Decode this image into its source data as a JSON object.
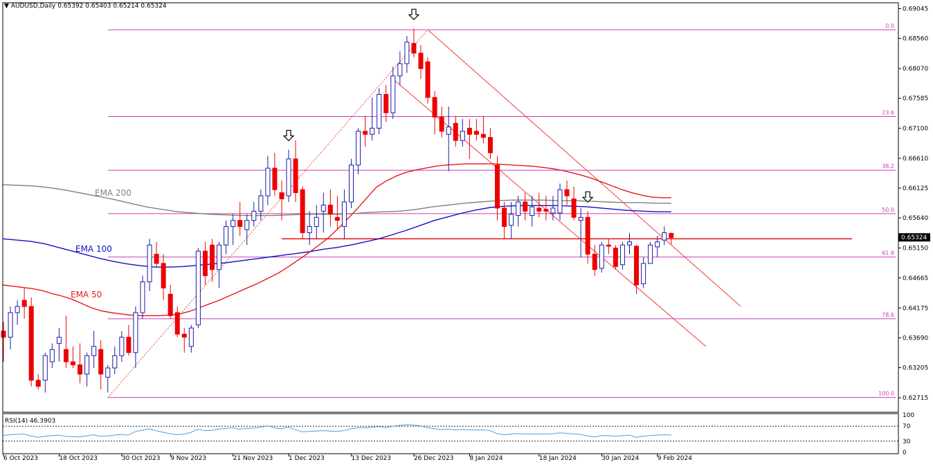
{
  "window": {
    "header_text": "AUDUSD,Daily  0.65392 0.65403 0.65214 0.65324",
    "symbol": "AUDUSD",
    "timeframe": "Daily",
    "ohlc": {
      "open": "0.65392",
      "high": "0.65403",
      "low": "0.65214",
      "close": "0.65324"
    },
    "current_price_label": "0.65324"
  },
  "colors": {
    "bull_body": "#ffffff",
    "bull_outline": "#1a1aa6",
    "bear_body": "#ee0000",
    "ema50": "#e8161b",
    "ema100": "#1010c8",
    "ema200": "#808080",
    "fib": "#c83cb4",
    "support_line": "#e00000",
    "channel": "#f03c3c",
    "rsi": "#4d9de0"
  },
  "chart_data": [
    {
      "type": "candlestick",
      "y_axis": {
        "ticks": [
          "0.69045",
          "0.68560",
          "0.68070",
          "0.67585",
          "0.67100",
          "0.66610",
          "0.66125",
          "0.65640",
          "0.65150",
          "0.64665",
          "0.64175",
          "0.63690",
          "0.63205",
          "0.62715"
        ],
        "range": [
          0.6248,
          0.6914
        ]
      },
      "x_axis": {
        "ticks": [
          "6 Oct 2023",
          "18 Oct 2023",
          "30 Oct 2023",
          "9 Nov 2023",
          "21 Nov 2023",
          "1 Dec 2023",
          "13 Dec 2023",
          "26 Dec 2023",
          "8 Jan 2024",
          "18 Jan 2024",
          "30 Jan 2024",
          "9 Feb 2024"
        ]
      },
      "candles": [
        {
          "o": 0.638,
          "h": 0.6395,
          "l": 0.633,
          "c": 0.637
        },
        {
          "o": 0.637,
          "h": 0.642,
          "l": 0.635,
          "c": 0.641
        },
        {
          "o": 0.641,
          "h": 0.643,
          "l": 0.639,
          "c": 0.642
        },
        {
          "o": 0.643,
          "h": 0.645,
          "l": 0.64,
          "c": 0.642
        },
        {
          "o": 0.642,
          "h": 0.6435,
          "l": 0.629,
          "c": 0.63
        },
        {
          "o": 0.63,
          "h": 0.631,
          "l": 0.6285,
          "c": 0.629
        },
        {
          "o": 0.63,
          "h": 0.6345,
          "l": 0.628,
          "c": 0.634
        },
        {
          "o": 0.633,
          "h": 0.636,
          "l": 0.632,
          "c": 0.635
        },
        {
          "o": 0.636,
          "h": 0.6385,
          "l": 0.633,
          "c": 0.637
        },
        {
          "o": 0.635,
          "h": 0.6405,
          "l": 0.632,
          "c": 0.633
        },
        {
          "o": 0.633,
          "h": 0.6355,
          "l": 0.632,
          "c": 0.6325
        },
        {
          "o": 0.6325,
          "h": 0.636,
          "l": 0.6295,
          "c": 0.631
        },
        {
          "o": 0.631,
          "h": 0.6345,
          "l": 0.629,
          "c": 0.634
        },
        {
          "o": 0.634,
          "h": 0.638,
          "l": 0.632,
          "c": 0.6355
        },
        {
          "o": 0.635,
          "h": 0.6365,
          "l": 0.6285,
          "c": 0.631
        },
        {
          "o": 0.6305,
          "h": 0.6325,
          "l": 0.628,
          "c": 0.632
        },
        {
          "o": 0.632,
          "h": 0.6355,
          "l": 0.631,
          "c": 0.634
        },
        {
          "o": 0.634,
          "h": 0.638,
          "l": 0.633,
          "c": 0.637
        },
        {
          "o": 0.637,
          "h": 0.639,
          "l": 0.634,
          "c": 0.6345
        },
        {
          "o": 0.6345,
          "h": 0.642,
          "l": 0.632,
          "c": 0.641
        },
        {
          "o": 0.641,
          "h": 0.647,
          "l": 0.64,
          "c": 0.646
        },
        {
          "o": 0.646,
          "h": 0.653,
          "l": 0.6445,
          "c": 0.652
        },
        {
          "o": 0.6505,
          "h": 0.6525,
          "l": 0.6485,
          "c": 0.649
        },
        {
          "o": 0.649,
          "h": 0.6505,
          "l": 0.643,
          "c": 0.645
        },
        {
          "o": 0.644,
          "h": 0.6455,
          "l": 0.64,
          "c": 0.6405
        },
        {
          "o": 0.641,
          "h": 0.642,
          "l": 0.637,
          "c": 0.6375
        },
        {
          "o": 0.6375,
          "h": 0.6385,
          "l": 0.6345,
          "c": 0.637
        },
        {
          "o": 0.6355,
          "h": 0.639,
          "l": 0.6345,
          "c": 0.6385
        },
        {
          "o": 0.639,
          "h": 0.6515,
          "l": 0.6385,
          "c": 0.651
        },
        {
          "o": 0.651,
          "h": 0.6525,
          "l": 0.6455,
          "c": 0.647
        },
        {
          "o": 0.652,
          "h": 0.653,
          "l": 0.646,
          "c": 0.648
        },
        {
          "o": 0.648,
          "h": 0.6525,
          "l": 0.645,
          "c": 0.652
        },
        {
          "o": 0.652,
          "h": 0.656,
          "l": 0.6505,
          "c": 0.655
        },
        {
          "o": 0.655,
          "h": 0.657,
          "l": 0.652,
          "c": 0.656
        },
        {
          "o": 0.656,
          "h": 0.659,
          "l": 0.6535,
          "c": 0.655
        },
        {
          "o": 0.6545,
          "h": 0.657,
          "l": 0.652,
          "c": 0.656
        },
        {
          "o": 0.656,
          "h": 0.659,
          "l": 0.655,
          "c": 0.6575
        },
        {
          "o": 0.6575,
          "h": 0.661,
          "l": 0.656,
          "c": 0.66
        },
        {
          "o": 0.66,
          "h": 0.6665,
          "l": 0.6585,
          "c": 0.6645
        },
        {
          "o": 0.6645,
          "h": 0.667,
          "l": 0.66,
          "c": 0.661
        },
        {
          "o": 0.6605,
          "h": 0.6625,
          "l": 0.656,
          "c": 0.6595
        },
        {
          "o": 0.66,
          "h": 0.6675,
          "l": 0.659,
          "c": 0.666
        },
        {
          "o": 0.666,
          "h": 0.669,
          "l": 0.659,
          "c": 0.6605
        },
        {
          "o": 0.661,
          "h": 0.6615,
          "l": 0.653,
          "c": 0.654
        },
        {
          "o": 0.654,
          "h": 0.6575,
          "l": 0.652,
          "c": 0.655
        },
        {
          "o": 0.655,
          "h": 0.6585,
          "l": 0.653,
          "c": 0.6565
        },
        {
          "o": 0.6575,
          "h": 0.6605,
          "l": 0.654,
          "c": 0.6585
        },
        {
          "o": 0.6585,
          "h": 0.661,
          "l": 0.655,
          "c": 0.657
        },
        {
          "o": 0.6565,
          "h": 0.66,
          "l": 0.6545,
          "c": 0.656
        },
        {
          "o": 0.655,
          "h": 0.661,
          "l": 0.653,
          "c": 0.659
        },
        {
          "o": 0.659,
          "h": 0.666,
          "l": 0.658,
          "c": 0.665
        },
        {
          "o": 0.665,
          "h": 0.671,
          "l": 0.6635,
          "c": 0.6705
        },
        {
          "o": 0.6705,
          "h": 0.673,
          "l": 0.668,
          "c": 0.67
        },
        {
          "o": 0.67,
          "h": 0.676,
          "l": 0.669,
          "c": 0.671
        },
        {
          "o": 0.671,
          "h": 0.6775,
          "l": 0.67,
          "c": 0.6765
        },
        {
          "o": 0.6765,
          "h": 0.678,
          "l": 0.672,
          "c": 0.6735
        },
        {
          "o": 0.6735,
          "h": 0.681,
          "l": 0.6725,
          "c": 0.6795
        },
        {
          "o": 0.6795,
          "h": 0.6835,
          "l": 0.678,
          "c": 0.6815
        },
        {
          "o": 0.6815,
          "h": 0.686,
          "l": 0.68,
          "c": 0.685
        },
        {
          "o": 0.6848,
          "h": 0.6872,
          "l": 0.6825,
          "c": 0.6832
        },
        {
          "o": 0.6832,
          "h": 0.6845,
          "l": 0.679,
          "c": 0.6807
        },
        {
          "o": 0.6818,
          "h": 0.6825,
          "l": 0.675,
          "c": 0.676
        },
        {
          "o": 0.676,
          "h": 0.677,
          "l": 0.67,
          "c": 0.6728
        },
        {
          "o": 0.6728,
          "h": 0.6745,
          "l": 0.6695,
          "c": 0.6705
        },
        {
          "o": 0.67,
          "h": 0.6745,
          "l": 0.664,
          "c": 0.6712
        },
        {
          "o": 0.6718,
          "h": 0.673,
          "l": 0.668,
          "c": 0.669
        },
        {
          "o": 0.669,
          "h": 0.6725,
          "l": 0.668,
          "c": 0.6705
        },
        {
          "o": 0.671,
          "h": 0.6725,
          "l": 0.666,
          "c": 0.67
        },
        {
          "o": 0.6705,
          "h": 0.6725,
          "l": 0.669,
          "c": 0.67
        },
        {
          "o": 0.67,
          "h": 0.673,
          "l": 0.6685,
          "c": 0.6695
        },
        {
          "o": 0.6695,
          "h": 0.671,
          "l": 0.666,
          "c": 0.667
        },
        {
          "o": 0.665,
          "h": 0.6665,
          "l": 0.656,
          "c": 0.658
        },
        {
          "o": 0.658,
          "h": 0.659,
          "l": 0.653,
          "c": 0.655
        },
        {
          "o": 0.6552,
          "h": 0.659,
          "l": 0.653,
          "c": 0.657
        },
        {
          "o": 0.6568,
          "h": 0.66,
          "l": 0.655,
          "c": 0.659
        },
        {
          "o": 0.659,
          "h": 0.6605,
          "l": 0.656,
          "c": 0.6575
        },
        {
          "o": 0.6568,
          "h": 0.66,
          "l": 0.655,
          "c": 0.6582
        },
        {
          "o": 0.658,
          "h": 0.6605,
          "l": 0.6565,
          "c": 0.6575
        },
        {
          "o": 0.6578,
          "h": 0.66,
          "l": 0.656,
          "c": 0.6575
        },
        {
          "o": 0.6572,
          "h": 0.66,
          "l": 0.656,
          "c": 0.658
        },
        {
          "o": 0.6572,
          "h": 0.662,
          "l": 0.656,
          "c": 0.661
        },
        {
          "o": 0.661,
          "h": 0.6625,
          "l": 0.6585,
          "c": 0.66
        },
        {
          "o": 0.6595,
          "h": 0.6615,
          "l": 0.656,
          "c": 0.6565
        },
        {
          "o": 0.656,
          "h": 0.658,
          "l": 0.65,
          "c": 0.6565
        },
        {
          "o": 0.6565,
          "h": 0.6575,
          "l": 0.649,
          "c": 0.6505
        },
        {
          "o": 0.6505,
          "h": 0.652,
          "l": 0.647,
          "c": 0.648
        },
        {
          "o": 0.6482,
          "h": 0.6525,
          "l": 0.6475,
          "c": 0.652
        },
        {
          "o": 0.652,
          "h": 0.653,
          "l": 0.6505,
          "c": 0.6518
        },
        {
          "o": 0.6515,
          "h": 0.652,
          "l": 0.648,
          "c": 0.6485
        },
        {
          "o": 0.6488,
          "h": 0.6525,
          "l": 0.648,
          "c": 0.652
        },
        {
          "o": 0.652,
          "h": 0.654,
          "l": 0.6505,
          "c": 0.6525
        },
        {
          "o": 0.6518,
          "h": 0.652,
          "l": 0.644,
          "c": 0.6455
        },
        {
          "o": 0.6457,
          "h": 0.65,
          "l": 0.645,
          "c": 0.649
        },
        {
          "o": 0.649,
          "h": 0.6525,
          "l": 0.649,
          "c": 0.652
        },
        {
          "o": 0.6517,
          "h": 0.6535,
          "l": 0.65,
          "c": 0.6525
        },
        {
          "o": 0.6528,
          "h": 0.655,
          "l": 0.652,
          "c": 0.654
        },
        {
          "o": 0.6539,
          "h": 0.654,
          "l": 0.6521,
          "c": 0.6532
        }
      ],
      "ema50": [
        0.6455,
        0.6453,
        0.6451,
        0.6449,
        0.6446,
        0.6441,
        0.6437,
        0.6432,
        0.6425,
        0.6418,
        0.6413,
        0.641,
        0.6408,
        0.6406,
        0.6405,
        0.6405,
        0.6405,
        0.6406,
        0.6408,
        0.6412,
        0.6418,
        0.6424,
        0.643,
        0.6437,
        0.6444,
        0.6451,
        0.6458,
        0.6466,
        0.6474,
        0.6484,
        0.6495,
        0.6506,
        0.6518,
        0.653,
        0.6545,
        0.6561,
        0.6578,
        0.6596,
        0.6614,
        0.6624,
        0.6632,
        0.6638,
        0.6642,
        0.6645,
        0.6648,
        0.665,
        0.6651,
        0.6652,
        0.6652,
        0.6652,
        0.6652,
        0.6651,
        0.665,
        0.6649,
        0.6648,
        0.6646,
        0.6644,
        0.6641,
        0.6637,
        0.6633,
        0.6628,
        0.6622,
        0.6616,
        0.661,
        0.6605,
        0.6601,
        0.6598,
        0.6597,
        0.6597
      ],
      "ema100": [
        0.653,
        0.6528,
        0.6526,
        0.6522,
        0.6516,
        0.651,
        0.6504,
        0.6498,
        0.6493,
        0.6489,
        0.6486,
        0.6484,
        0.6484,
        0.6485,
        0.6487,
        0.6489,
        0.6491,
        0.6494,
        0.6497,
        0.65,
        0.6503,
        0.6506,
        0.6509,
        0.6513,
        0.6516,
        0.652,
        0.6525,
        0.653,
        0.6537,
        0.6544,
        0.6552,
        0.656,
        0.6566,
        0.6572,
        0.6577,
        0.6581,
        0.6583,
        0.6584,
        0.6584,
        0.6584,
        0.6584,
        0.6583,
        0.6582,
        0.658,
        0.6578,
        0.6576,
        0.6575,
        0.6574,
        0.6574
      ],
      "ema200": [
        0.6618,
        0.6617,
        0.6616,
        0.6613,
        0.6609,
        0.6604,
        0.6599,
        0.6594,
        0.6588,
        0.6582,
        0.6578,
        0.6574,
        0.6572,
        0.657,
        0.6569,
        0.6568,
        0.6568,
        0.6568,
        0.6569,
        0.657,
        0.657,
        0.657,
        0.6571,
        0.6573,
        0.6574,
        0.6575,
        0.6578,
        0.6582,
        0.6585,
        0.6588,
        0.659,
        0.6592,
        0.6593,
        0.6593,
        0.6593,
        0.6592,
        0.6592,
        0.6591,
        0.659,
        0.6589,
        0.6589,
        0.6588,
        0.6588
      ],
      "moving_average_labels": [
        {
          "text": "EMA 200",
          "color": "#808080"
        },
        {
          "text": "EMA 100",
          "color": "#1010c8"
        },
        {
          "text": "EMA 50",
          "color": "#e8161b"
        }
      ],
      "fibonacci": {
        "high": 0.687,
        "low": 0.6272,
        "levels": [
          {
            "label": "0.0",
            "ratio": 0.0
          },
          {
            "label": "23.6",
            "ratio": 0.236
          },
          {
            "label": "38.2",
            "ratio": 0.382
          },
          {
            "label": "50.0",
            "ratio": 0.5
          },
          {
            "label": "61.8",
            "ratio": 0.618
          },
          {
            "label": "78.6",
            "ratio": 0.786
          },
          {
            "label": "100.0",
            "ratio": 1.0
          }
        ]
      },
      "support_level": 0.653,
      "current_price": 0.65324,
      "swing_markers": [
        {
          "index": 41
        },
        {
          "index": 59
        },
        {
          "index": 84
        }
      ]
    },
    {
      "type": "line",
      "indicator": "RSI",
      "label": "RSI(14) 46.3903",
      "y_axis": {
        "ticks": [
          "100",
          "70",
          "30",
          "0"
        ],
        "levels": [
          70,
          30
        ],
        "range": [
          0,
          100
        ]
      },
      "values": [
        45,
        47,
        48,
        49,
        44,
        40,
        43,
        45,
        46,
        43,
        42,
        41,
        44,
        47,
        43,
        44,
        46,
        48,
        46,
        55,
        59,
        63,
        58,
        54,
        50,
        47,
        49,
        53,
        62,
        58,
        59,
        62,
        64,
        66,
        62,
        64,
        65,
        67,
        71,
        66,
        63,
        68,
        61,
        55,
        56,
        57,
        58,
        57,
        56,
        58,
        63,
        66,
        66,
        67,
        69,
        66,
        70,
        72,
        74,
        73,
        71,
        66,
        63,
        61,
        62,
        60,
        61,
        60,
        60,
        60,
        58,
        50,
        47,
        49,
        50,
        49,
        49,
        49,
        49,
        50,
        52,
        51,
        49,
        48,
        44,
        41,
        45,
        45,
        43,
        45,
        46,
        40,
        43,
        45,
        46,
        47,
        46
      ]
    }
  ]
}
